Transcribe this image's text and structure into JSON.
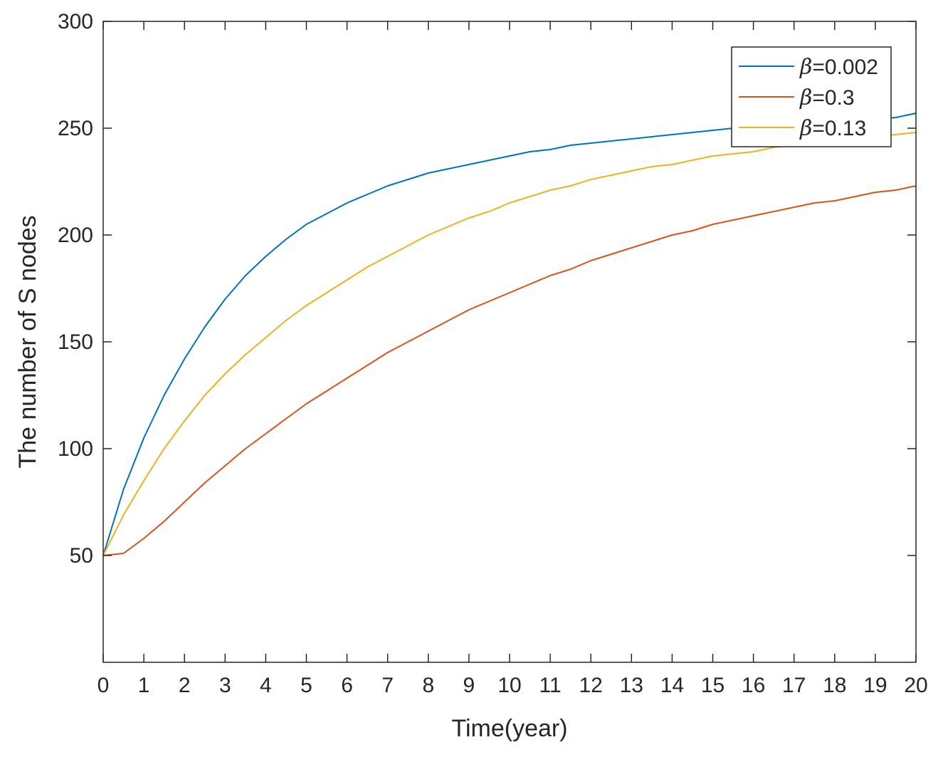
{
  "chart_data": {
    "type": "line",
    "title": "",
    "xlabel": "Time(year)",
    "ylabel": "The number of S nodes",
    "xlim": [
      0,
      20
    ],
    "ylim": [
      0,
      300
    ],
    "xticks": [
      0,
      1,
      2,
      3,
      4,
      5,
      6,
      7,
      8,
      9,
      10,
      11,
      12,
      13,
      14,
      15,
      16,
      17,
      18,
      19,
      20
    ],
    "yticks": [
      50,
      100,
      150,
      200,
      250,
      300
    ],
    "grid": false,
    "legend": {
      "position": "top-right"
    },
    "x": [
      0,
      0.5,
      1,
      1.5,
      2,
      2.5,
      3,
      3.5,
      4,
      4.5,
      5,
      5.5,
      6,
      6.5,
      7,
      7.5,
      8,
      8.5,
      9,
      9.5,
      10,
      10.5,
      11,
      11.5,
      12,
      12.5,
      13,
      13.5,
      14,
      14.5,
      15,
      15.5,
      16,
      16.5,
      17,
      17.5,
      18,
      18.5,
      19,
      19.5,
      20
    ],
    "series": [
      {
        "name": "β=0.002",
        "symbol": "β",
        "value_label": "=0.002",
        "color": "#0072BD",
        "values": [
          50,
          81,
          105,
          125,
          142,
          157,
          170,
          181,
          190,
          198,
          205,
          210,
          215,
          219,
          223,
          226,
          229,
          231,
          233,
          235,
          237,
          239,
          240,
          242,
          243,
          244,
          245,
          246,
          247,
          248,
          249,
          250,
          251,
          252,
          252,
          253,
          253,
          254,
          254,
          255,
          257
        ]
      },
      {
        "name": "β=0.3",
        "symbol": "β",
        "value_label": "=0.3",
        "color": "#D95319",
        "values": [
          50,
          51,
          58,
          66,
          75,
          84,
          92,
          100,
          107,
          114,
          121,
          127,
          133,
          139,
          145,
          150,
          155,
          160,
          165,
          169,
          173,
          177,
          181,
          184,
          188,
          191,
          194,
          197,
          200,
          202,
          205,
          207,
          209,
          211,
          213,
          215,
          216,
          218,
          220,
          221,
          223
        ]
      },
      {
        "name": "β=0.13",
        "symbol": "β",
        "value_label": "=0.13",
        "color": "#EDB120",
        "values": [
          50,
          69,
          85,
          100,
          113,
          125,
          135,
          144,
          152,
          160,
          167,
          173,
          179,
          185,
          190,
          195,
          200,
          204,
          208,
          211,
          215,
          218,
          221,
          223,
          226,
          228,
          230,
          232,
          233,
          235,
          237,
          238,
          239,
          241,
          242,
          243,
          244,
          245,
          246,
          247,
          248
        ]
      }
    ]
  }
}
